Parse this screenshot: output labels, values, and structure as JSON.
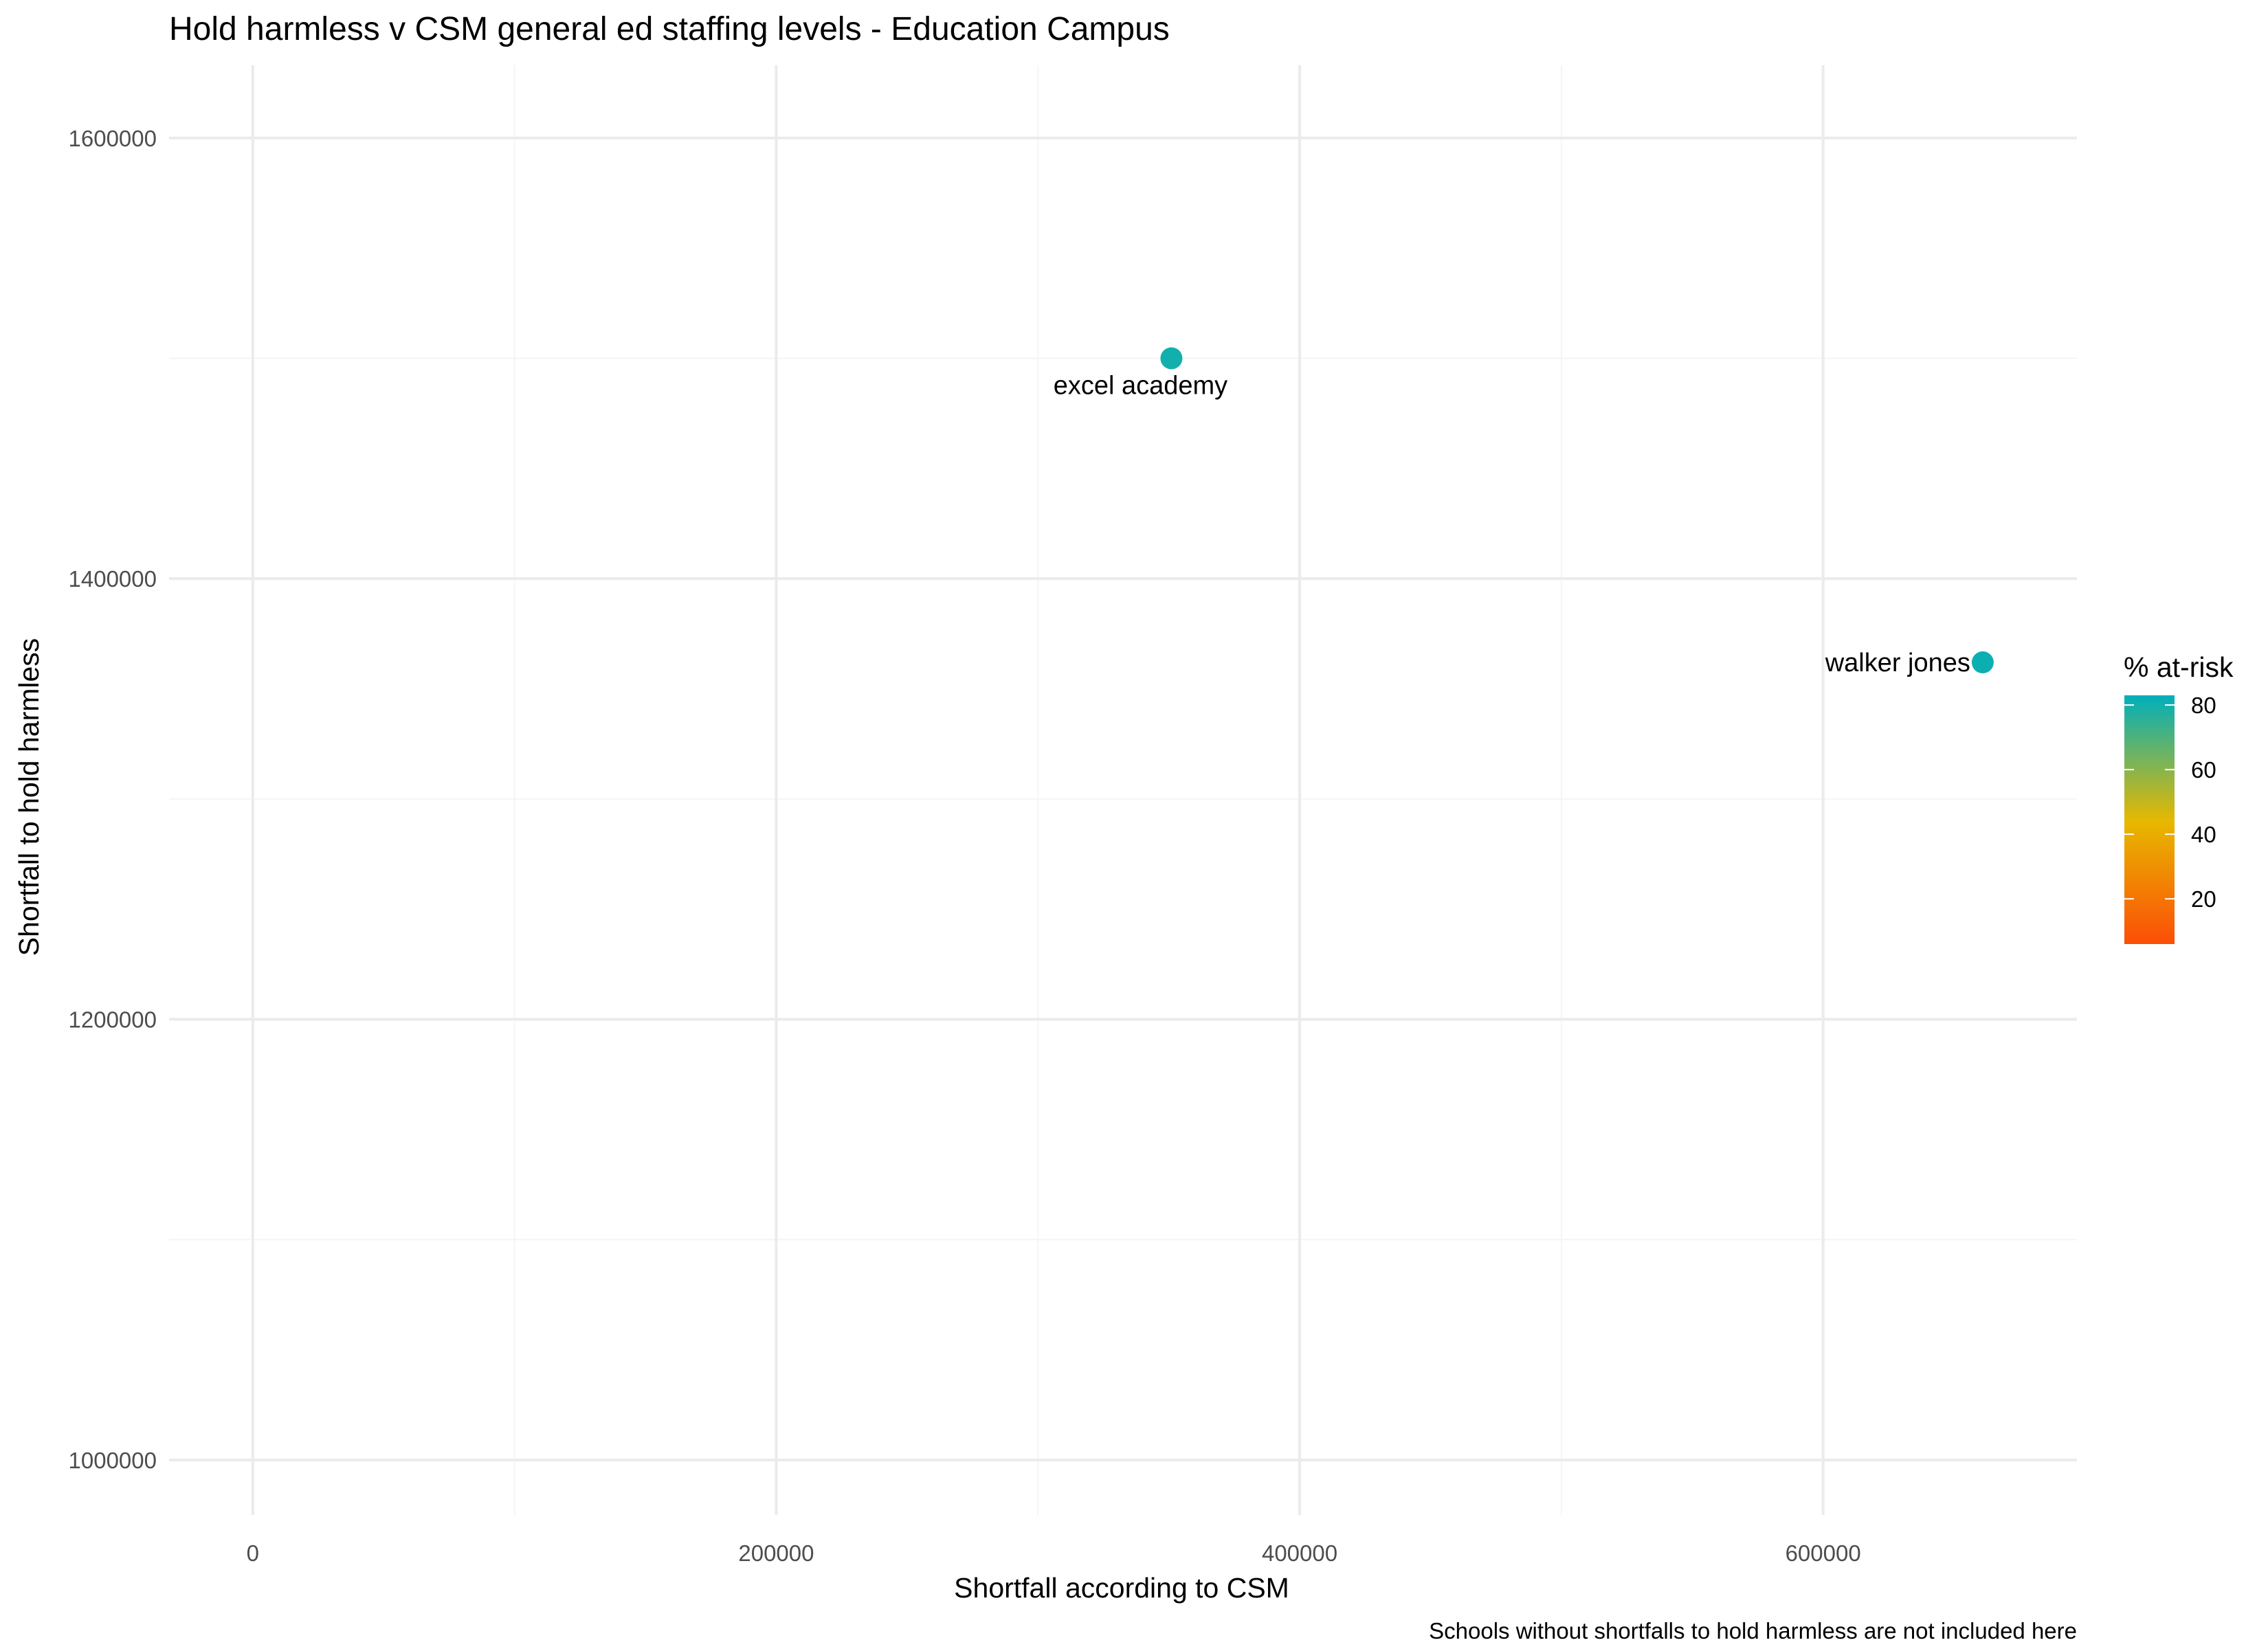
{
  "chart_data": {
    "type": "scatter",
    "title": "Hold harmless v CSM general ed staffing levels - Education Campus",
    "xlabel": "Shortfall according to CSM",
    "ylabel": "Shortfall to hold harmless",
    "caption": "Schools without shortfalls to hold harmless are not included here",
    "xlim": [
      -32000,
      697000
    ],
    "ylim": [
      975000,
      1633000
    ],
    "x_ticks": [
      0,
      200000,
      400000,
      600000
    ],
    "x_tick_labels": [
      "0",
      "200000",
      "400000",
      "600000"
    ],
    "x_minor_ticks": [
      100000,
      300000,
      500000
    ],
    "y_ticks": [
      1000000,
      1200000,
      1400000,
      1600000
    ],
    "y_tick_labels": [
      "1000000",
      "1200000",
      "1400000",
      "1600000"
    ],
    "y_minor_ticks": [
      1100000,
      1300000,
      1500000
    ],
    "grid": true,
    "legend_position": "right",
    "points": [
      {
        "label": "excel academy",
        "x": 351000,
        "y": 1500000,
        "at_risk": 80,
        "label_placement": "below"
      },
      {
        "label": "walker jones",
        "x": 661000,
        "y": 1362000,
        "at_risk": 81,
        "label_placement": "left"
      }
    ],
    "color_scale": {
      "title": "% at-risk",
      "min": 6,
      "max": 83,
      "ticks": [
        20,
        40,
        60,
        80
      ],
      "tick_labels": [
        "20",
        "40",
        "60",
        "80"
      ],
      "stops": [
        {
          "value": 6,
          "color": "#fc4e07"
        },
        {
          "value": 44,
          "color": "#e7b800"
        },
        {
          "value": 83,
          "color": "#00afbb"
        }
      ]
    }
  },
  "colors": {
    "grid_major": "#ebebeb",
    "grid_minor": "#f5f5f5",
    "tick_text": "#4d4d4d",
    "text": "#000000",
    "point": "#0faeba"
  }
}
